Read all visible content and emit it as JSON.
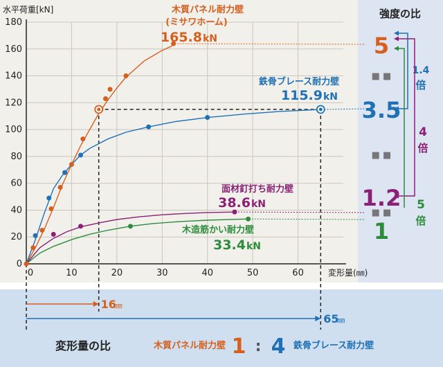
{
  "chart_data": {
    "type": "line",
    "ylabel": "水平荷重[kN]",
    "xlabel": "変形量(㎜)",
    "xlim": [
      0,
      70
    ],
    "ylim": [
      0,
      180
    ],
    "xticks": [
      0,
      10,
      20,
      30,
      40,
      50,
      60
    ],
    "yticks": [
      0,
      20,
      40,
      60,
      80,
      100,
      120,
      140,
      160,
      180
    ],
    "grid": true,
    "series": [
      {
        "name": "木質パネル耐力壁",
        "sub": "(ミサワホーム)",
        "max_label": "165.8",
        "unit": "kN",
        "color": "#d45f1e",
        "line": [
          [
            0,
            0
          ],
          [
            2,
            12
          ],
          [
            4,
            26
          ],
          [
            6,
            42
          ],
          [
            8,
            59
          ],
          [
            10,
            74
          ],
          [
            12,
            88
          ],
          [
            14,
            100
          ],
          [
            16,
            112
          ],
          [
            18,
            122
          ],
          [
            20,
            131
          ],
          [
            22,
            139
          ],
          [
            24,
            145
          ],
          [
            26,
            151
          ],
          [
            28,
            155
          ],
          [
            30,
            159
          ],
          [
            32,
            162
          ],
          [
            32.5,
            164
          ]
        ],
        "markers": [
          [
            1.5,
            12
          ],
          [
            3.5,
            25
          ],
          [
            5.5,
            41
          ],
          [
            7.5,
            57
          ],
          [
            10,
            74
          ],
          [
            12.5,
            93
          ],
          [
            16.5,
            115
          ],
          [
            17.5,
            123
          ],
          [
            18.5,
            130
          ],
          [
            22,
            140
          ],
          [
            32.5,
            164
          ]
        ]
      },
      {
        "name": "鉄骨ブレース耐力壁",
        "max_label": "115.9",
        "unit": "kN",
        "color": "#1f70b4",
        "line": [
          [
            0,
            0
          ],
          [
            2,
            18
          ],
          [
            4,
            38
          ],
          [
            6,
            56
          ],
          [
            8,
            66
          ],
          [
            10,
            74
          ],
          [
            12,
            81
          ],
          [
            14,
            86
          ],
          [
            18,
            93
          ],
          [
            22,
            98
          ],
          [
            27,
            102
          ],
          [
            33,
            106
          ],
          [
            40,
            109
          ],
          [
            48,
            111.5
          ],
          [
            56,
            113.5
          ],
          [
            65,
            115
          ]
        ],
        "markers": [
          [
            2,
            21
          ],
          [
            5,
            49
          ],
          [
            8.5,
            68
          ],
          [
            12,
            81
          ],
          [
            27,
            102
          ],
          [
            40,
            109
          ],
          [
            65,
            115
          ]
        ]
      },
      {
        "name": "面材釘打ち耐力壁",
        "max_label": "38.6",
        "unit": "kN",
        "color": "#8a2176",
        "line": [
          [
            0,
            0
          ],
          [
            3,
            12
          ],
          [
            6,
            19
          ],
          [
            9,
            24
          ],
          [
            12,
            27.5
          ],
          [
            16,
            30.5
          ],
          [
            20,
            33
          ],
          [
            25,
            35
          ],
          [
            30,
            36.5
          ],
          [
            35,
            37.5
          ],
          [
            40,
            38.2
          ],
          [
            46,
            38.6
          ]
        ],
        "markers": [
          [
            6,
            22
          ],
          [
            12,
            28
          ],
          [
            46,
            38.6
          ]
        ]
      },
      {
        "name": "木造筋かい耐力壁",
        "max_label": "33.4",
        "unit": "kN",
        "color": "#2c8c3c",
        "line": [
          [
            0,
            0
          ],
          [
            3,
            8
          ],
          [
            6,
            13
          ],
          [
            10,
            18
          ],
          [
            14,
            22
          ],
          [
            18,
            25
          ],
          [
            23,
            28
          ],
          [
            28,
            30
          ],
          [
            34,
            31.5
          ],
          [
            40,
            32.5
          ],
          [
            49,
            33.4
          ]
        ],
        "markers": [
          [
            23,
            28
          ],
          [
            49,
            33.4
          ]
        ]
      }
    ]
  },
  "ratio_panel": {
    "title": "強度の比",
    "values": [
      "5",
      "3.5",
      "1.2",
      "1"
    ],
    "colors": [
      "#d45f1e",
      "#1f70b4",
      "#8a2176",
      "#2c8c3c"
    ],
    "dots": "■ ■",
    "brackets": [
      {
        "ratio": "1.4",
        "unit": "倍",
        "color": "#1f70b4"
      },
      {
        "ratio": "4",
        "unit": "倍",
        "color": "#8a2176"
      },
      {
        "ratio": "5",
        "unit": "倍",
        "color": "#2c8c3c"
      }
    ]
  },
  "deformation": {
    "wood_value": "16",
    "steel_value": "65",
    "unit": "㎜",
    "wood_x": 16,
    "steel_x": 65
  },
  "footer": {
    "title": "変形量の比",
    "left_label": "木質パネル耐力壁",
    "left_value": "1",
    "sep": ":",
    "right_value": "4",
    "right_label": "鉄骨ブレース耐力壁"
  }
}
